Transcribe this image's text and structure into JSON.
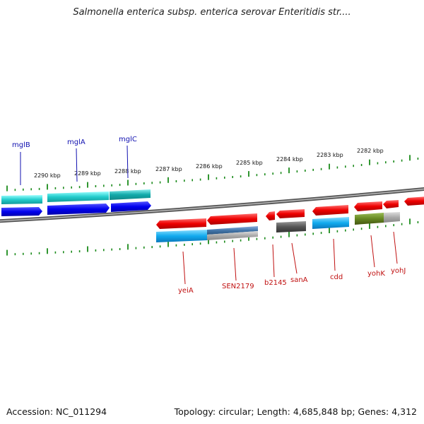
{
  "title": "Salmonella enterica subsp. enterica serovar Enteritidis str....",
  "footer": {
    "accession": "Accession: NC_011294",
    "topology": "Topology: circular; Length: 4,685,848 bp; Genes: 4,312"
  },
  "scale_labels": [
    "2290 kbp",
    "2289 kbp",
    "2288 kbp",
    "2287 kbp",
    "2286 kbp",
    "2285 kbp",
    "2284 kbp",
    "2283 kbp",
    "2282 kbp"
  ],
  "genes_top": [
    {
      "label": "mglB",
      "color": "#0000ee"
    },
    {
      "label": "mglA",
      "color": "#0000ee"
    },
    {
      "label": "mglC",
      "color": "#0000ee"
    }
  ],
  "genes_bottom": [
    {
      "label": "yeiA",
      "color": "#ee0000"
    },
    {
      "label": "SEN2179",
      "color": "#ee0000"
    },
    {
      "label": "b2145",
      "color": "#ee0000"
    },
    {
      "label": "sanA",
      "color": "#ee0000"
    },
    {
      "label": "cdd",
      "color": "#ee0000"
    },
    {
      "label": "yohK",
      "color": "#ee0000"
    },
    {
      "label": "yohJ",
      "color": "#ee0000"
    }
  ],
  "colors": {
    "forward_strand": "#0000ee",
    "reverse_strand": "#ee0000",
    "feature_cyan": "#22cccc",
    "feature_skyblue": "#11aaee",
    "feature_steelblue": "#4477aa",
    "feature_gray": "#555555",
    "feature_lightgray": "#aaaaaa",
    "feature_olive": "#668822",
    "tick": "#1a8a1a"
  }
}
